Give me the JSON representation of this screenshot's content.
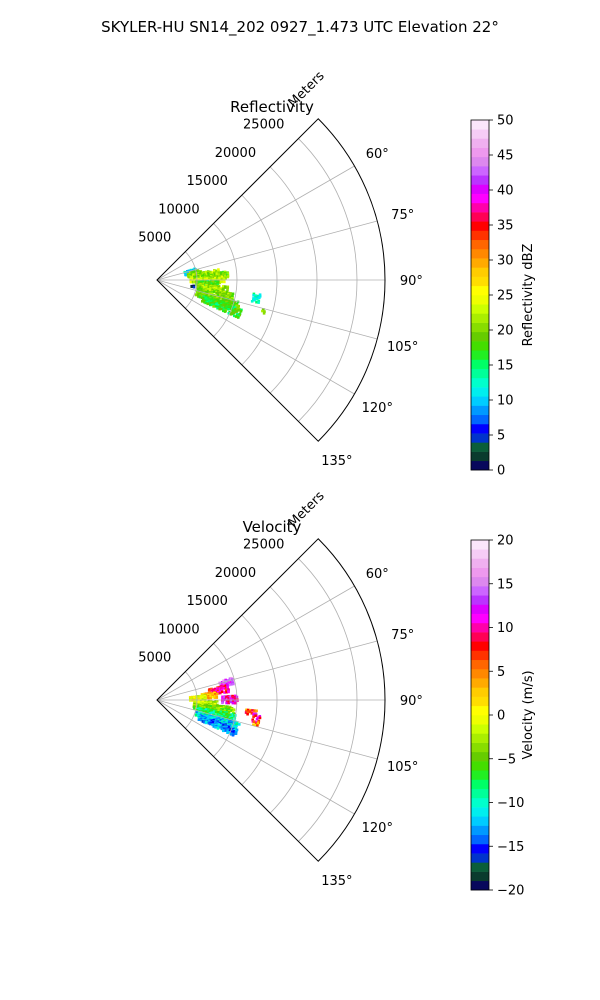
{
  "figure": {
    "suptitle": "SKYLER-HU  SN14_202  0927_1.473 UTC Elevation 22°"
  },
  "chart_data": [
    {
      "type": "heatmap",
      "subtype": "polar-sector",
      "title": "Reflectivity",
      "r_axis_label": "Meters",
      "r_ticks": [
        5000,
        10000,
        15000,
        20000,
        25000
      ],
      "r_tick_labels": [
        "5000",
        "10000",
        "15000",
        "20000",
        "25000"
      ],
      "rlim": [
        0,
        28500
      ],
      "theta_range_deg": [
        45,
        135
      ],
      "theta_ticks_deg": [
        60,
        75,
        90,
        105,
        120,
        135
      ],
      "theta_tick_labels": [
        "60°",
        "75°",
        "90°",
        "105°",
        "120°",
        "135°"
      ],
      "grid": true,
      "colorbar": {
        "label": "Reflectivity dBZ",
        "range": [
          0,
          50
        ],
        "ticks": [
          0,
          5,
          10,
          15,
          20,
          25,
          30,
          35,
          40,
          45,
          50
        ],
        "tick_labels": [
          "0",
          "5",
          "10",
          "15",
          "20",
          "25",
          "30",
          "35",
          "40",
          "45",
          "50"
        ],
        "colors": [
          "#08085c",
          "#0a3b2e",
          "#0b5e3a",
          "#0033cc",
          "#0000ff",
          "#0066ff",
          "#0099ff",
          "#00ccff",
          "#00eeee",
          "#00ffcc",
          "#00ff99",
          "#00ff66",
          "#22ee22",
          "#44dd00",
          "#66cc00",
          "#88dd00",
          "#aaee00",
          "#ccff00",
          "#eeff00",
          "#ffff00",
          "#ffdd00",
          "#ffcc00",
          "#ffaa00",
          "#ff8800",
          "#ff6600",
          "#ff3300",
          "#ff0000",
          "#ff0055",
          "#ff00aa",
          "#ff00ff",
          "#dd00ff",
          "#bb33ff",
          "#cc66ff",
          "#dd88ee",
          "#ee99ee",
          "#f0b0f0",
          "#f6ccf6",
          "#fae6fa"
        ]
      },
      "echo_cells": [
        {
          "theta_deg": 75,
          "theta_span": 8,
          "r": [
            3500,
            5000
          ],
          "value": 11
        },
        {
          "theta_deg": 79,
          "theta_span": 8,
          "r": [
            3800,
            5500
          ],
          "value": 20
        },
        {
          "theta_deg": 82,
          "theta_span": 6,
          "r": [
            4200,
            7800
          ],
          "value": 22
        },
        {
          "theta_deg": 85,
          "theta_span": 6,
          "r": [
            4500,
            8800
          ],
          "value": 20
        },
        {
          "theta_deg": 89,
          "theta_span": 6,
          "r": [
            4000,
            8200
          ],
          "value": 23
        },
        {
          "theta_deg": 93,
          "theta_span": 6,
          "r": [
            4800,
            7500
          ],
          "value": 18
        },
        {
          "theta_deg": 98,
          "theta_span": 7,
          "r": [
            5000,
            8800
          ],
          "value": 21
        },
        {
          "theta_deg": 103,
          "theta_span": 7,
          "r": [
            5000,
            9500
          ],
          "value": 20
        },
        {
          "theta_deg": 108,
          "theta_span": 7,
          "r": [
            5000,
            10500
          ],
          "value": 19
        },
        {
          "theta_deg": 112,
          "theta_span": 6,
          "r": [
            6000,
            11000
          ],
          "value": 17
        },
        {
          "theta_deg": 100,
          "theta_span": 5,
          "r": [
            12000,
            12800
          ],
          "value": 13
        },
        {
          "theta_deg": 106,
          "theta_span": 2,
          "r": [
            13500,
            14000
          ],
          "value": 20
        },
        {
          "theta_deg": 98,
          "theta_span": 3,
          "r": [
            4200,
            4700
          ],
          "value": 3
        }
      ]
    },
    {
      "type": "heatmap",
      "subtype": "polar-sector",
      "title": "Velocity",
      "r_axis_label": "Meters",
      "r_ticks": [
        5000,
        10000,
        15000,
        20000,
        25000
      ],
      "r_tick_labels": [
        "5000",
        "10000",
        "15000",
        "20000",
        "25000"
      ],
      "rlim": [
        0,
        28500
      ],
      "theta_range_deg": [
        45,
        135
      ],
      "theta_ticks_deg": [
        60,
        75,
        90,
        105,
        120,
        135
      ],
      "theta_tick_labels": [
        "60°",
        "75°",
        "90°",
        "105°",
        "120°",
        "135°"
      ],
      "grid": true,
      "colorbar": {
        "label": "Velocity (m/s)",
        "range": [
          -20,
          20
        ],
        "ticks": [
          -20,
          -15,
          -10,
          -5,
          0,
          5,
          10,
          15,
          20
        ],
        "tick_labels": [
          "−20",
          "−15",
          "−10",
          "−5",
          "0",
          "5",
          "10",
          "15",
          "20"
        ],
        "colors": [
          "#08085c",
          "#0a3b2e",
          "#0b5e3a",
          "#0033cc",
          "#0000ff",
          "#0066ff",
          "#0099ff",
          "#00ccff",
          "#00eeee",
          "#00ffcc",
          "#00ff99",
          "#00ff66",
          "#22ee22",
          "#44dd00",
          "#66cc00",
          "#88dd00",
          "#aaee00",
          "#ccff00",
          "#eeff00",
          "#ffff00",
          "#ffdd00",
          "#ffcc00",
          "#ffaa00",
          "#ff8800",
          "#ff6600",
          "#ff3300",
          "#ff0000",
          "#ff0055",
          "#ff00aa",
          "#ff00ff",
          "#dd00ff",
          "#bb33ff",
          "#cc66ff",
          "#dd88ee",
          "#ee99ee",
          "#f0b0f0",
          "#f6ccf6",
          "#fae6fa"
        ]
      },
      "echo_cells": [
        {
          "theta_deg": 75,
          "theta_span": 5,
          "r": [
            8000,
            9800
          ],
          "value": 14
        },
        {
          "theta_deg": 80,
          "theta_span": 6,
          "r": [
            6500,
            9000
          ],
          "value": 9
        },
        {
          "theta_deg": 84,
          "theta_span": 6,
          "r": [
            5500,
            7500
          ],
          "value": 3
        },
        {
          "theta_deg": 89,
          "theta_span": 6,
          "r": [
            8000,
            10000
          ],
          "value": 11
        },
        {
          "theta_deg": 86,
          "theta_span": 6,
          "r": [
            4000,
            6000
          ],
          "value": 0
        },
        {
          "theta_deg": 93,
          "theta_span": 6,
          "r": [
            4500,
            7500
          ],
          "value": -2
        },
        {
          "theta_deg": 98,
          "theta_span": 7,
          "r": [
            4500,
            9500
          ],
          "value": -4
        },
        {
          "theta_deg": 103,
          "theta_span": 7,
          "r": [
            5000,
            9800
          ],
          "value": -8
        },
        {
          "theta_deg": 108,
          "theta_span": 6,
          "r": [
            5000,
            10500
          ],
          "value": -11
        },
        {
          "theta_deg": 112,
          "theta_span": 6,
          "r": [
            5500,
            10500
          ],
          "value": -13
        },
        {
          "theta_deg": 97,
          "theta_span": 3,
          "r": [
            11000,
            12500
          ],
          "value": 6
        },
        {
          "theta_deg": 100,
          "theta_span": 5,
          "r": [
            12000,
            13000
          ],
          "value": 10
        },
        {
          "theta_deg": 103,
          "theta_span": 2,
          "r": [
            12200,
            12800
          ],
          "value": 4
        }
      ]
    }
  ]
}
